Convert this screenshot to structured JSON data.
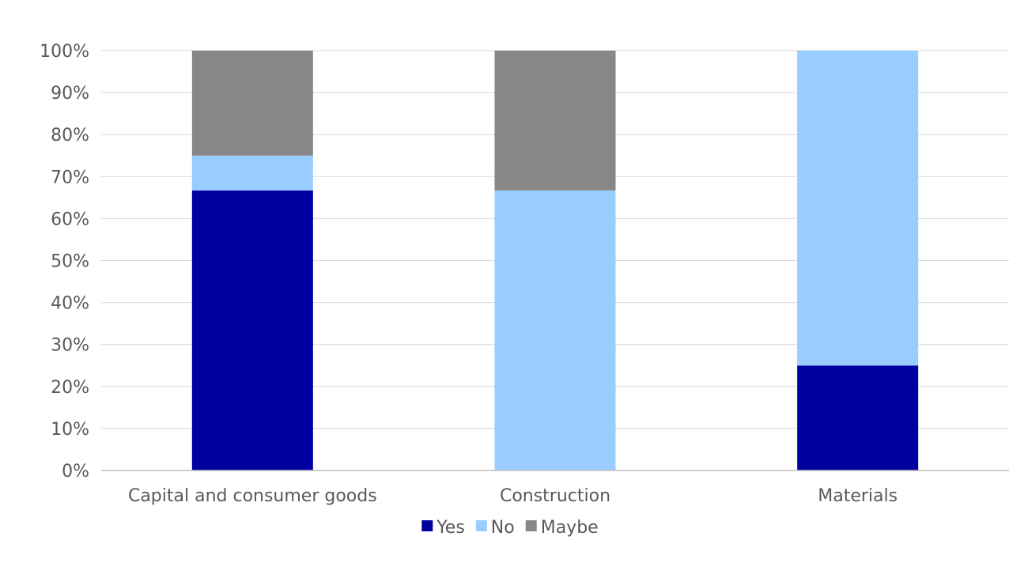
{
  "chart_data": {
    "type": "bar",
    "stacked": true,
    "percent": true,
    "title": "",
    "xlabel": "",
    "ylabel": "",
    "ylim": [
      0,
      100
    ],
    "yticks": [
      "0%",
      "10%",
      "20%",
      "30%",
      "40%",
      "50%",
      "60%",
      "70%",
      "80%",
      "90%",
      "100%"
    ],
    "categories": [
      "Capital and consumer goods",
      "Construction",
      "Materials"
    ],
    "series": [
      {
        "name": "Yes",
        "color": "#0000A0",
        "values": [
          66.7,
          0,
          25
        ]
      },
      {
        "name": "No",
        "color": "#99CCFF",
        "values": [
          8.3,
          66.7,
          75
        ]
      },
      {
        "name": "Maybe",
        "color": "#878787",
        "values": [
          25,
          33.3,
          0
        ]
      }
    ],
    "grid": true,
    "legend_position": "bottom"
  }
}
